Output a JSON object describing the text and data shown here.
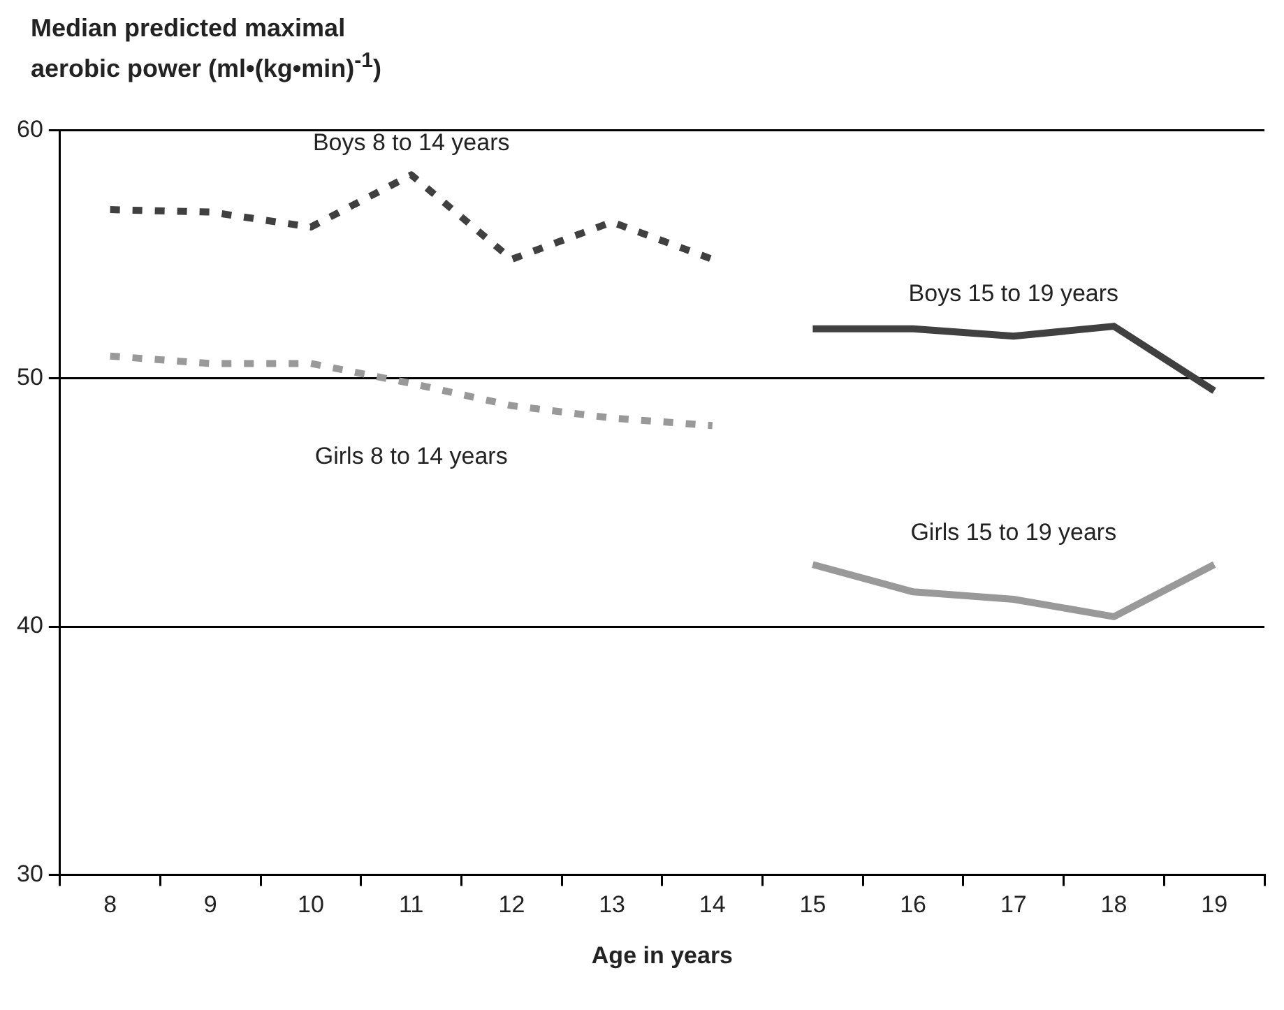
{
  "chart_data": {
    "type": "line",
    "ylabel": "Median predicted maximal aerobic power (ml•(kg•min)$^{-1}$)",
    "xlabel": "Age in years",
    "categories": [
      "8",
      "9",
      "10",
      "11",
      "12",
      "13",
      "14",
      "15",
      "16",
      "17",
      "18",
      "19"
    ],
    "ylim": [
      30,
      60
    ],
    "yticks": [
      30,
      40,
      50,
      60
    ],
    "grid": "y",
    "legend": false,
    "marker": "none",
    "series": [
      {
        "name": "Boys 8 to 14 years",
        "color": "#404040",
        "line_style": "dashed",
        "values": [
          56.8,
          56.7,
          56.1,
          58.2,
          54.8,
          56.3,
          54.8,
          null,
          null,
          null,
          null,
          null
        ]
      },
      {
        "name": "Girls 8 to 14 years",
        "color": "#999999",
        "line_style": "dashed",
        "values": [
          50.9,
          50.6,
          50.6,
          49.8,
          48.9,
          48.4,
          48.1,
          null,
          null,
          null,
          null,
          null
        ]
      },
      {
        "name": "Boys 15 to 19 years",
        "color": "#404040",
        "line_style": "solid",
        "values": [
          null,
          null,
          null,
          null,
          null,
          null,
          null,
          52.0,
          52.0,
          51.7,
          52.1,
          49.5
        ]
      },
      {
        "name": "Girls 15 to 19 years",
        "color": "#999999",
        "line_style": "solid",
        "values": [
          null,
          null,
          null,
          null,
          null,
          null,
          null,
          42.5,
          41.4,
          41.1,
          40.4,
          42.5
        ]
      }
    ]
  }
}
